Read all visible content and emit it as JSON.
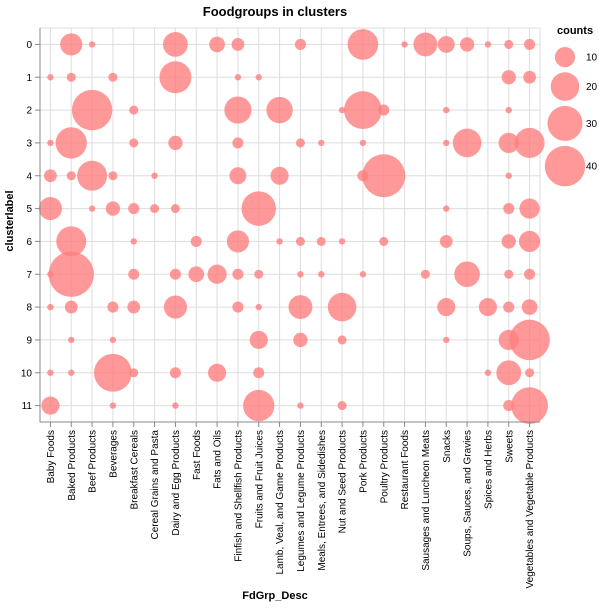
{
  "chart_data": {
    "type": "scatter",
    "mark": "circle",
    "title": "Foodgroups in clusters",
    "xlabel": "FdGrp_Desc",
    "ylabel": "clusterlabel",
    "grid": true,
    "color": "#ff7f7f",
    "categories": [
      "Baby Foods",
      "Baked Products",
      "Beef Products",
      "Beverages",
      "Breakfast Cereals",
      "Cereal Grains and Pasta",
      "Dairy and Egg Products",
      "Fast Foods",
      "Fats and Oils",
      "Finfish and Shellfish Products",
      "Fruits and Fruit Juices",
      "Lamb, Veal, and Game Products",
      "Legumes and Legume Products",
      "Meals, Entrees, and Sidedishes",
      "Nut and Seed Products",
      "Pork Products",
      "Poultry Products",
      "Restaurant Foods",
      "Sausages and Luncheon Meats",
      "Snacks",
      "Soups, Sauces, and Gravies",
      "Spices and Herbs",
      "Sweets",
      "Vegetables and Vegetable Products"
    ],
    "clusters": [
      "0",
      "1",
      "2",
      "3",
      "4",
      "5",
      "6",
      "7",
      "8",
      "9",
      "10",
      "11"
    ],
    "size_legend": {
      "title": "counts",
      "placement": "top-right",
      "values": [
        10,
        20,
        30,
        40
      ]
    },
    "points": [
      [
        "Baked Products",
        "0",
        12
      ],
      [
        "Beef Products",
        "0",
        1
      ],
      [
        "Dairy and Egg Products",
        "0",
        15
      ],
      [
        "Fats and Oils",
        "0",
        6
      ],
      [
        "Finfish and Shellfish Products",
        "0",
        4
      ],
      [
        "Legumes and Legume Products",
        "0",
        3
      ],
      [
        "Pork Products",
        "0",
        23
      ],
      [
        "Restaurant Foods",
        "0",
        1
      ],
      [
        "Sausages and Luncheon Meats",
        "0",
        14
      ],
      [
        "Snacks",
        "0",
        7
      ],
      [
        "Soups, Sauces, and Gravies",
        "0",
        5
      ],
      [
        "Spices and Herbs",
        "0",
        1
      ],
      [
        "Sweets",
        "0",
        2
      ],
      [
        "Vegetables and Vegetable Products",
        "0",
        3
      ],
      [
        "Baby Foods",
        "1",
        1
      ],
      [
        "Baked Products",
        "1",
        2
      ],
      [
        "Beverages",
        "1",
        2
      ],
      [
        "Dairy and Egg Products",
        "1",
        25
      ],
      [
        "Finfish and Shellfish Products",
        "1",
        1
      ],
      [
        "Fruits and Fruit Juices",
        "1",
        1
      ],
      [
        "Sweets",
        "1",
        5
      ],
      [
        "Vegetables and Vegetable Products",
        "1",
        4
      ],
      [
        "Beef Products",
        "2",
        40
      ],
      [
        "Breakfast Cereals",
        "2",
        2
      ],
      [
        "Finfish and Shellfish Products",
        "2",
        18
      ],
      [
        "Lamb, Veal, and Game Products",
        "2",
        17
      ],
      [
        "Nut and Seed Products",
        "2",
        1
      ],
      [
        "Pork Products",
        "2",
        35
      ],
      [
        "Poultry Products",
        "2",
        3
      ],
      [
        "Snacks",
        "2",
        1
      ],
      [
        "Sweets",
        "2",
        1
      ],
      [
        "Baby Foods",
        "3",
        1
      ],
      [
        "Baked Products",
        "3",
        24
      ],
      [
        "Breakfast Cereals",
        "3",
        2
      ],
      [
        "Dairy and Egg Products",
        "3",
        5
      ],
      [
        "Finfish and Shellfish Products",
        "3",
        3
      ],
      [
        "Legumes and Legume Products",
        "3",
        2
      ],
      [
        "Meals, Entrees, and Sidedishes",
        "3",
        1
      ],
      [
        "Pork Products",
        "3",
        1
      ],
      [
        "Snacks",
        "3",
        1
      ],
      [
        "Soups, Sauces, and Gravies",
        "3",
        20
      ],
      [
        "Sweets",
        "3",
        10
      ],
      [
        "Vegetables and Vegetable Products",
        "3",
        22
      ],
      [
        "Baby Foods",
        "4",
        4
      ],
      [
        "Baked Products",
        "4",
        2
      ],
      [
        "Beef Products",
        "4",
        22
      ],
      [
        "Beverages",
        "4",
        2
      ],
      [
        "Cereal Grains and Pasta",
        "4",
        1
      ],
      [
        "Finfish and Shellfish Products",
        "4",
        7
      ],
      [
        "Lamb, Veal, and Game Products",
        "4",
        8
      ],
      [
        "Pork Products",
        "4",
        3
      ],
      [
        "Poultry Products",
        "4",
        45
      ],
      [
        "Sweets",
        "4",
        1
      ],
      [
        "Baby Foods",
        "5",
        13
      ],
      [
        "Beef Products",
        "5",
        1
      ],
      [
        "Beverages",
        "5",
        5
      ],
      [
        "Breakfast Cereals",
        "5",
        3
      ],
      [
        "Cereal Grains and Pasta",
        "5",
        2
      ],
      [
        "Dairy and Egg Products",
        "5",
        2
      ],
      [
        "Fruits and Fruit Juices",
        "5",
        29
      ],
      [
        "Snacks",
        "5",
        1
      ],
      [
        "Sweets",
        "5",
        3
      ],
      [
        "Vegetables and Vegetable Products",
        "5",
        10
      ],
      [
        "Baked Products",
        "6",
        22
      ],
      [
        "Breakfast Cereals",
        "6",
        1
      ],
      [
        "Fast Foods",
        "6",
        3
      ],
      [
        "Finfish and Shellfish Products",
        "6",
        12
      ],
      [
        "Lamb, Veal, and Game Products",
        "6",
        1
      ],
      [
        "Legumes and Legume Products",
        "6",
        2
      ],
      [
        "Meals, Entrees, and Sidedishes",
        "6",
        2
      ],
      [
        "Nut and Seed Products",
        "6",
        1
      ],
      [
        "Poultry Products",
        "6",
        2
      ],
      [
        "Snacks",
        "6",
        4
      ],
      [
        "Sweets",
        "6",
        5
      ],
      [
        "Vegetables and Vegetable Products",
        "6",
        11
      ],
      [
        "Baby Foods",
        "7",
        1
      ],
      [
        "Baked Products",
        "7",
        50
      ],
      [
        "Breakfast Cereals",
        "7",
        3
      ],
      [
        "Dairy and Egg Products",
        "7",
        3
      ],
      [
        "Fast Foods",
        "7",
        6
      ],
      [
        "Fats and Oils",
        "7",
        9
      ],
      [
        "Finfish and Shellfish Products",
        "7",
        3
      ],
      [
        "Fruits and Fruit Juices",
        "7",
        2
      ],
      [
        "Legumes and Legume Products",
        "7",
        1
      ],
      [
        "Meals, Entrees, and Sidedishes",
        "7",
        1
      ],
      [
        "Pork Products",
        "7",
        1
      ],
      [
        "Sausages and Luncheon Meats",
        "7",
        2
      ],
      [
        "Soups, Sauces, and Gravies",
        "7",
        16
      ],
      [
        "Sweets",
        "7",
        2
      ],
      [
        "Vegetables and Vegetable Products",
        "7",
        3
      ],
      [
        "Baby Foods",
        "8",
        1
      ],
      [
        "Baked Products",
        "8",
        4
      ],
      [
        "Beverages",
        "8",
        3
      ],
      [
        "Breakfast Cereals",
        "8",
        4
      ],
      [
        "Dairy and Egg Products",
        "8",
        13
      ],
      [
        "Finfish and Shellfish Products",
        "8",
        3
      ],
      [
        "Fruits and Fruit Juices",
        "8",
        1
      ],
      [
        "Legumes and Legume Products",
        "8",
        14
      ],
      [
        "Nut and Seed Products",
        "8",
        20
      ],
      [
        "Snacks",
        "8",
        8
      ],
      [
        "Spices and Herbs",
        "8",
        8
      ],
      [
        "Sweets",
        "8",
        3
      ],
      [
        "Vegetables and Vegetable Products",
        "8",
        6
      ],
      [
        "Baked Products",
        "9",
        1
      ],
      [
        "Beverages",
        "9",
        1
      ],
      [
        "Fruits and Fruit Juices",
        "9",
        8
      ],
      [
        "Legumes and Legume Products",
        "9",
        5
      ],
      [
        "Nut and Seed Products",
        "9",
        2
      ],
      [
        "Snacks",
        "9",
        1
      ],
      [
        "Sweets",
        "9",
        10
      ],
      [
        "Vegetables and Vegetable Products",
        "9",
        40
      ],
      [
        "Baby Foods",
        "10",
        1
      ],
      [
        "Baked Products",
        "10",
        1
      ],
      [
        "Beverages",
        "10",
        35
      ],
      [
        "Breakfast Cereals",
        "10",
        2
      ],
      [
        "Dairy and Egg Products",
        "10",
        3
      ],
      [
        "Fats and Oils",
        "10",
        8
      ],
      [
        "Fruits and Fruit Juices",
        "10",
        3
      ],
      [
        "Spices and Herbs",
        "10",
        1
      ],
      [
        "Sweets",
        "10",
        15
      ],
      [
        "Vegetables and Vegetable Products",
        "10",
        2
      ],
      [
        "Baby Foods",
        "11",
        8
      ],
      [
        "Beverages",
        "11",
        1
      ],
      [
        "Dairy and Egg Products",
        "11",
        1
      ],
      [
        "Fruits and Fruit Juices",
        "11",
        24
      ],
      [
        "Legumes and Legume Products",
        "11",
        1
      ],
      [
        "Nut and Seed Products",
        "11",
        2
      ],
      [
        "Sweets",
        "11",
        3
      ],
      [
        "Vegetables and Vegetable Products",
        "11",
        33
      ]
    ]
  }
}
